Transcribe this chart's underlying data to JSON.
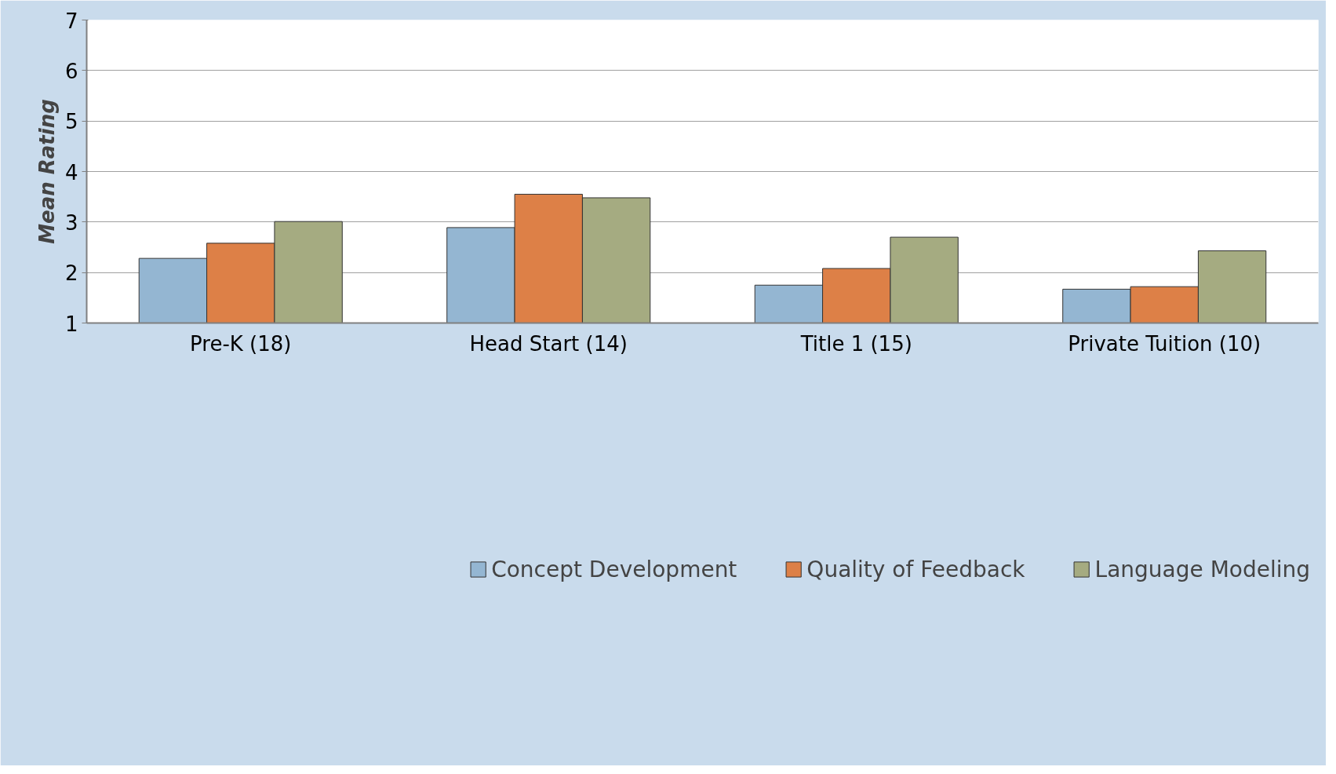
{
  "chart_data": {
    "type": "bar",
    "ylabel": "Mean Rating",
    "categories": [
      "Pre-K (18)",
      "Head Start (14)",
      "Title 1 (15)",
      "Private Tuition (10)"
    ],
    "series": [
      {
        "name": "Concept Development",
        "color": "#94b6d2",
        "values": [
          2.28,
          2.89,
          1.75,
          1.67
        ]
      },
      {
        "name": "Quality of Feedback",
        "color": "#dd8047",
        "values": [
          2.58,
          3.55,
          2.08,
          1.72
        ]
      },
      {
        "name": "Language Modeling",
        "color": "#a5ab81",
        "values": [
          3.01,
          3.48,
          2.7,
          2.43
        ]
      }
    ],
    "ylim": [
      1,
      7
    ],
    "yticks": [
      1,
      2,
      3,
      4,
      5,
      6,
      7
    ],
    "grid": "y",
    "legend": "bottom"
  }
}
